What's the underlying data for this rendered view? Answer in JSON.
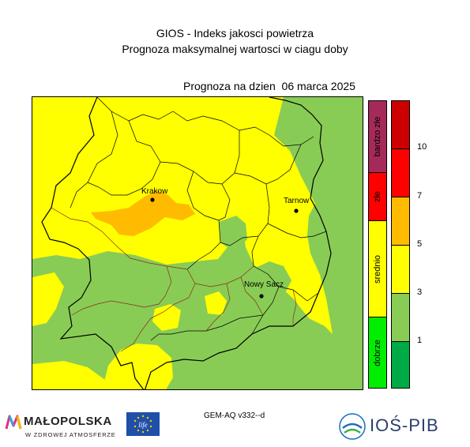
{
  "title": {
    "line1": "GIOS - Indeks jakosci powietrza",
    "line2": "Prognoza maksymalnej wartosci w ciagu doby"
  },
  "forecast_label": "Prognoza na dzien  06 marca 2025",
  "cities": [
    "Krakow",
    "Tarnow",
    "Nowy Sacz"
  ],
  "categories": [
    {
      "label": "bardzo złe",
      "color": "#a52a5a"
    },
    {
      "label": "złe",
      "color": "#ff0000"
    },
    {
      "label": "srednio",
      "color": "#ffff00"
    },
    {
      "label": "dobrze",
      "color": "#00ee00"
    }
  ],
  "scale": {
    "colors": [
      "#cc0000",
      "#ff0000",
      "#ffbb00",
      "#ffff00",
      "#88cc55",
      "#00aa44"
    ],
    "ticks": [
      "10",
      "7",
      "5",
      "3",
      "1"
    ]
  },
  "model": "GEM-AQ v332--d",
  "logos": {
    "malopolska": {
      "name": "MAŁOPOLSKA",
      "tagline": "W ZDROWEJ ATMOSFERZE"
    },
    "eu": {
      "name": "life-eu-logo",
      "text": "life"
    },
    "ios": {
      "name": "IOŚ-PIB"
    }
  }
}
